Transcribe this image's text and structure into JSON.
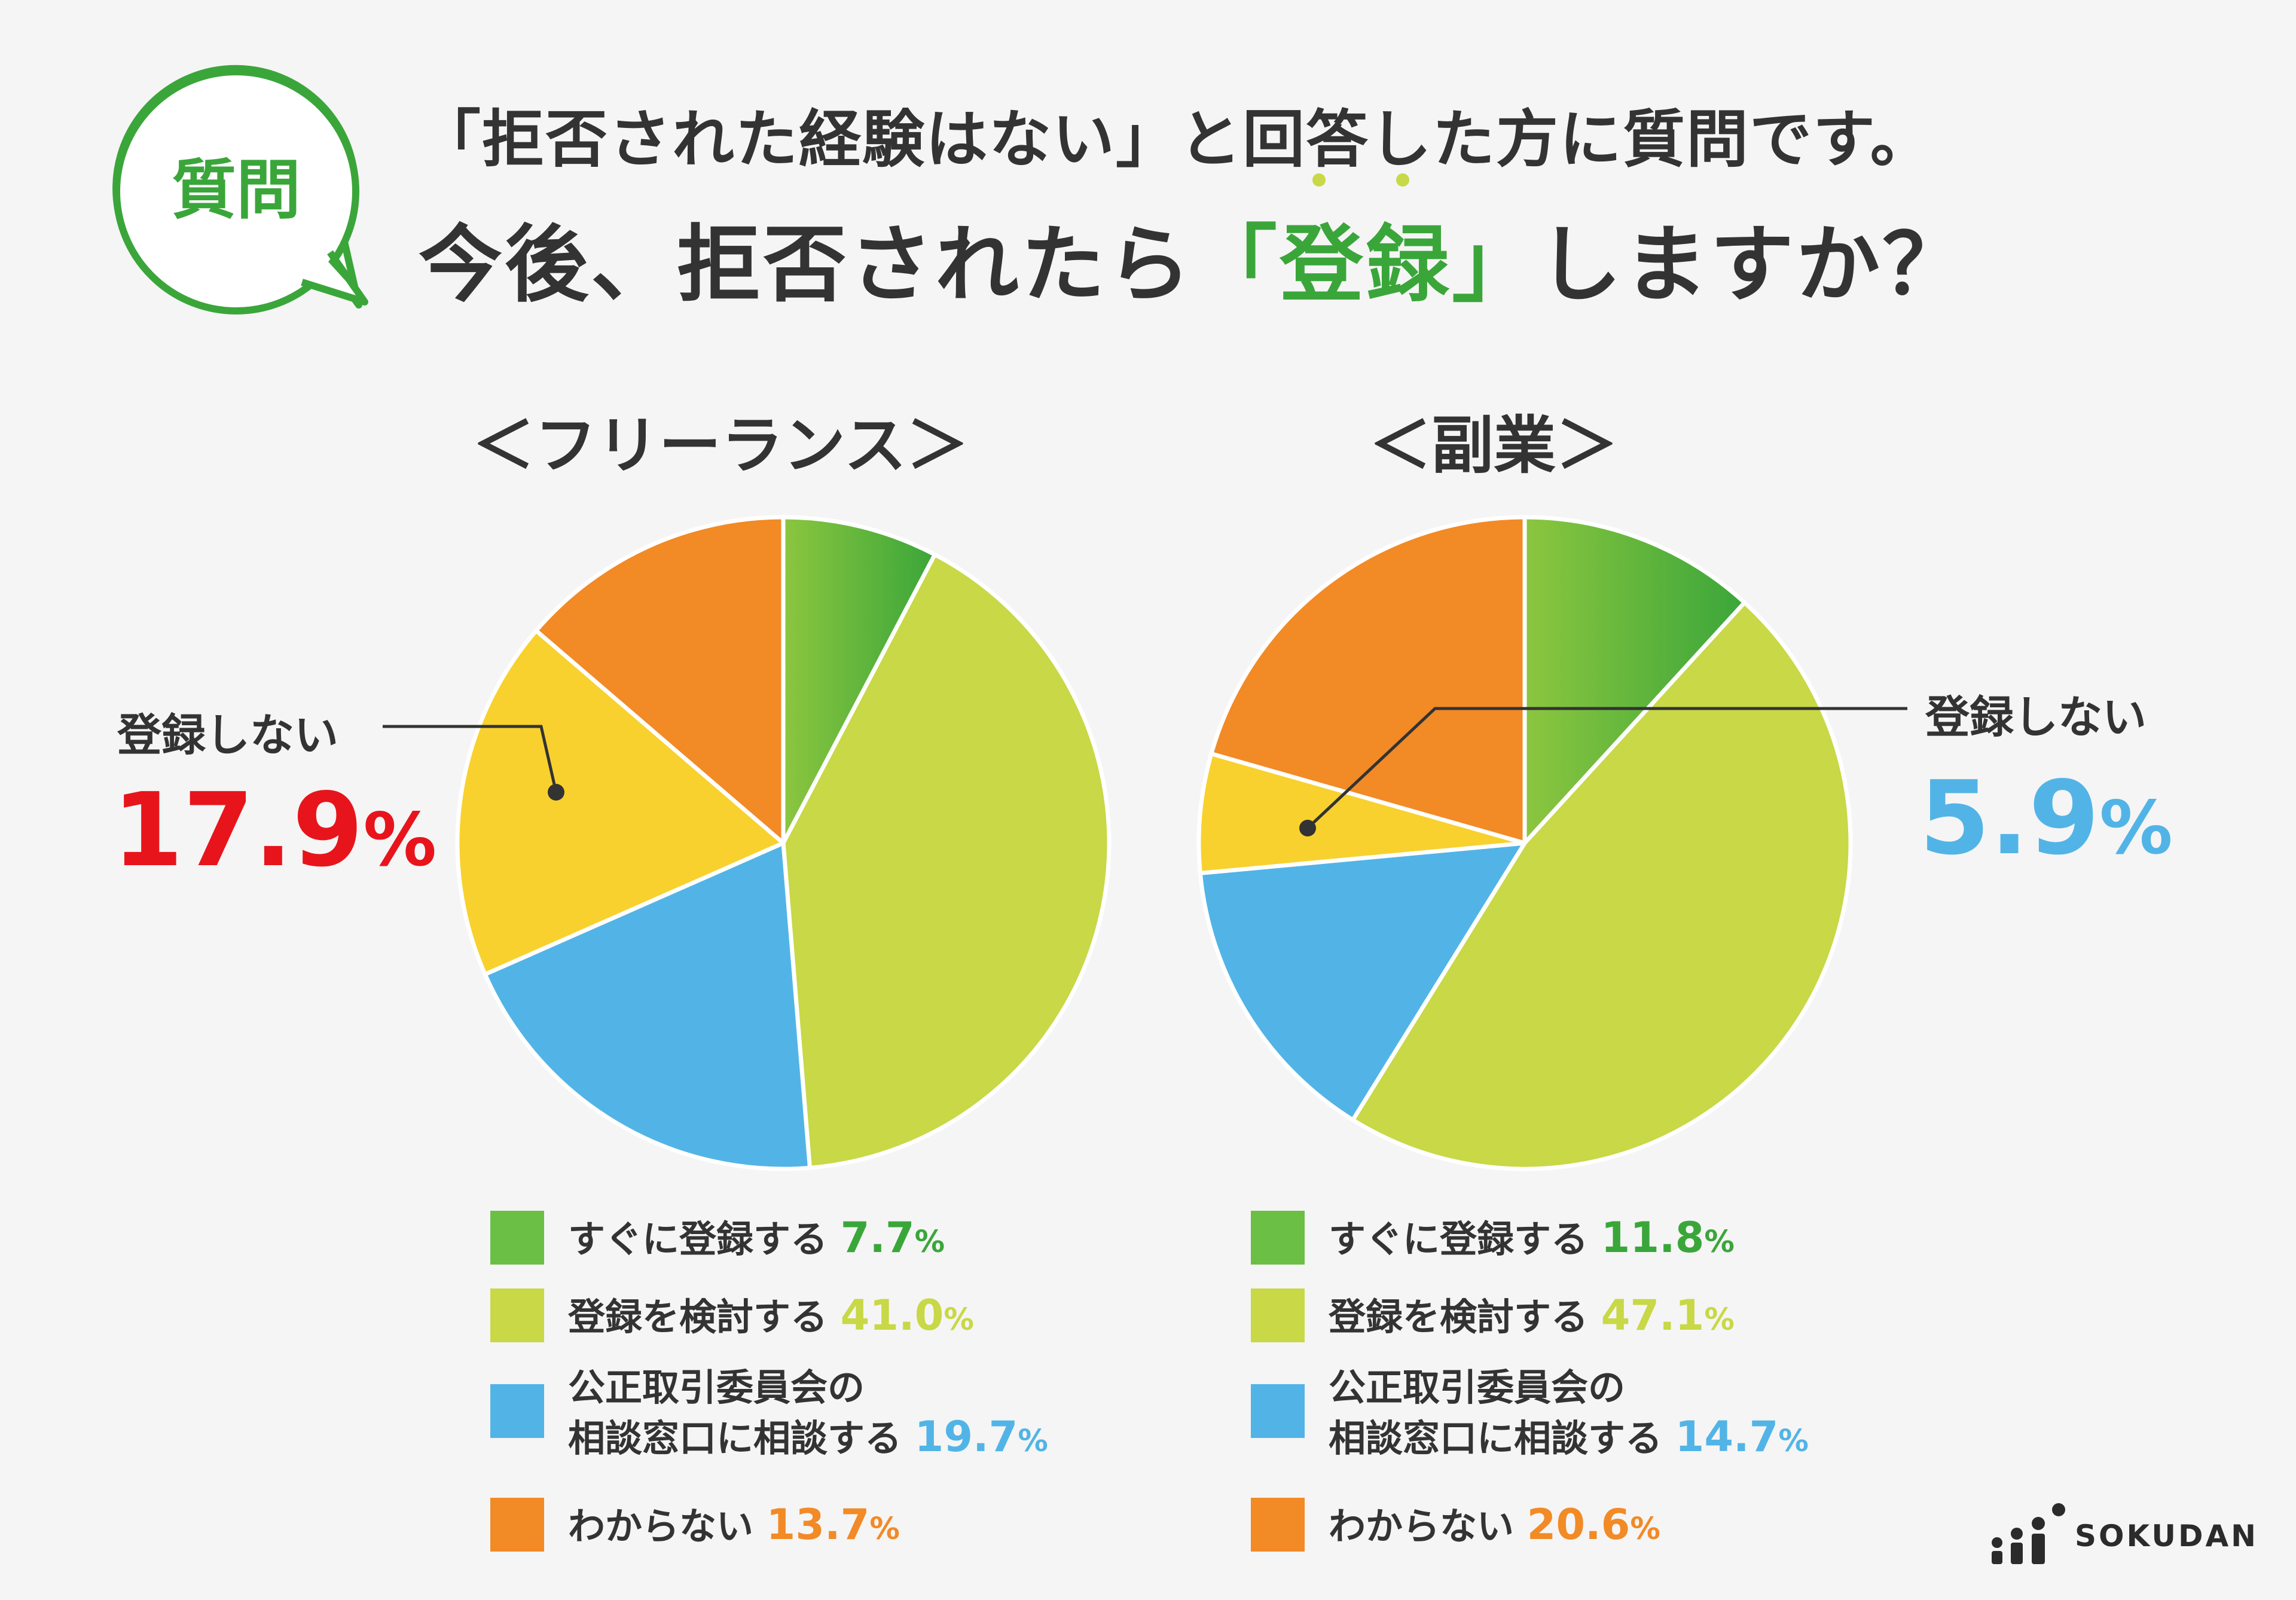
{
  "badge": {
    "label": "質問"
  },
  "header": {
    "line1": "「拒否された経験はない」と回答した方に質問です。",
    "line2_pre": "今後、拒否されたら",
    "line2_open": "「",
    "line2_highlight": "登録",
    "line2_close": "」",
    "line2_post": "しますか？"
  },
  "colors": {
    "immediate": "#6bbf45",
    "consider": "#c8d846",
    "consult": "#52b4e6",
    "dontknow": "#f28a26",
    "notregister": "#f8d12e",
    "accent_green": "#3aa63a",
    "red": "#e8141c",
    "blue": "#52b4e6"
  },
  "callouts": {
    "freelance": {
      "label": "登録しない",
      "value": "17.9",
      "unit": "%"
    },
    "sidejob": {
      "label": "登録しない",
      "value": "5.9",
      "unit": "%"
    }
  },
  "legend_labels": {
    "immediate": "すぐに登録する",
    "consider": "登録を検討する",
    "consult_line1": "公正取引委員会の",
    "consult_line2": "相談窓口に相談する",
    "dontknow": "わからない"
  },
  "chart_data": [
    {
      "type": "pie",
      "title": "＜フリーランス＞",
      "start": "top",
      "direction": "clockwise",
      "slices": [
        {
          "label": "すぐに登録する",
          "value": 7.7,
          "value_text": "7.7",
          "color": "#6bbf45"
        },
        {
          "label": "登録を検討する",
          "value": 41.0,
          "value_text": "41.0",
          "color": "#c8d846"
        },
        {
          "label": "公正取引委員会の相談窓口に相談する",
          "value": 19.7,
          "value_text": "19.7",
          "color": "#52b4e6"
        },
        {
          "label": "登録しない",
          "value": 17.9,
          "value_text": "17.9",
          "color": "#f8d12e"
        },
        {
          "label": "わからない",
          "value": 13.7,
          "value_text": "13.7",
          "color": "#f28a26"
        }
      ]
    },
    {
      "type": "pie",
      "title": "＜副業＞",
      "start": "top",
      "direction": "clockwise",
      "slices": [
        {
          "label": "すぐに登録する",
          "value": 11.8,
          "value_text": "11.8",
          "color": "#6bbf45"
        },
        {
          "label": "登録を検討する",
          "value": 47.1,
          "value_text": "47.1",
          "color": "#c8d846"
        },
        {
          "label": "公正取引委員会の相談窓口に相談する",
          "value": 14.7,
          "value_text": "14.7",
          "color": "#52b4e6"
        },
        {
          "label": "登録しない",
          "value": 5.9,
          "value_text": "5.9",
          "color": "#f8d12e"
        },
        {
          "label": "わからない",
          "value": 20.6,
          "value_text": "20.6",
          "color": "#f28a26"
        }
      ]
    }
  ],
  "logo": {
    "text": "SOKUDAN",
    "icon": "sokudan-logo-icon"
  }
}
